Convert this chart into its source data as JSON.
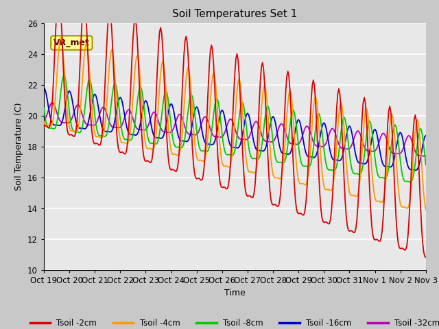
{
  "title": "Soil Temperatures Set 1",
  "xlabel": "Time",
  "ylabel": "Soil Temperature (C)",
  "ylim": [
    10,
    26
  ],
  "xlim": [
    0,
    360
  ],
  "annotation": "VR_met",
  "tick_labels": [
    "Oct 19",
    "Oct 20",
    "Oct 21",
    "Oct 22",
    "Oct 23",
    "Oct 24",
    "Oct 25",
    "Oct 26",
    "Oct 27",
    "Oct 28",
    "Oct 29",
    "Oct 30",
    "Oct 31",
    "Nov 1",
    "Nov 2",
    "Nov 3"
  ],
  "tick_positions": [
    0,
    24,
    48,
    72,
    96,
    120,
    144,
    168,
    192,
    216,
    240,
    264,
    288,
    312,
    336,
    360
  ],
  "yticks": [
    10,
    12,
    14,
    16,
    18,
    20,
    22,
    24,
    26
  ],
  "colors": {
    "Tsoil -2cm": "#dd0000",
    "Tsoil -4cm": "#ff9900",
    "Tsoil -8cm": "#00cc00",
    "Tsoil -16cm": "#0000cc",
    "Tsoil -32cm": "#bb00bb"
  },
  "fig_facecolor": "#c8c8c8",
  "ax_facecolor": "#e8e8e8",
  "grid_color": "#ffffff",
  "annot_text": "VR_met",
  "annot_fgcolor": "#550000",
  "annot_bgcolor": "#ffff99",
  "annot_edgecolor": "#999900"
}
